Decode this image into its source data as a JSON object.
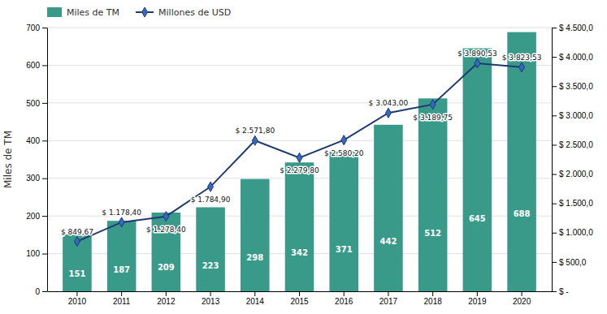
{
  "chart_data": {
    "type": "bar",
    "categories": [
      "2010",
      "2011",
      "2012",
      "2013",
      "2014",
      "2015",
      "2016",
      "2017",
      "2018",
      "2019",
      "2020"
    ],
    "ylabel": "Miles de TM",
    "series": [
      {
        "name": "Miles de TM",
        "type": "bar",
        "color": "#3a9a8a",
        "data_labels": true,
        "values": [
          151,
          187,
          209,
          223,
          298,
          342,
          371,
          442,
          512,
          645,
          688
        ]
      },
      {
        "name": "Millones de USD",
        "type": "line",
        "axis": "y2",
        "color": "#1e3a6e",
        "marker": "diamond",
        "data_labels": true,
        "values": [
          849.67,
          1178.4,
          1278.4,
          1784.9,
          2571.8,
          2279.8,
          2580.2,
          3043.0,
          3189.75,
          3890.53,
          3823.53
        ],
        "value_labels": [
          "$ 849,67",
          "$ 1.178,40",
          "$ 1.278,40",
          "$ 1.784,90",
          "$ 2.571,80",
          "$ 2.279,80",
          "$ 2.580,20",
          "$ 3.043,00",
          "$ 3.189,75",
          "$ 3.890,53",
          "$ 3.823,53"
        ]
      }
    ],
    "ylim": [
      0,
      700
    ],
    "yticks": [
      0,
      100,
      200,
      300,
      400,
      500,
      600,
      700
    ],
    "y2lim": [
      0,
      4500
    ],
    "y2ticks": [
      {
        "value": 0,
        "label": "$ -"
      },
      {
        "value": 500,
        "label": "$ 500,0"
      },
      {
        "value": 1000,
        "label": "$ 1.000,0"
      },
      {
        "value": 1500,
        "label": "$ 1.500,0"
      },
      {
        "value": 2000,
        "label": "$ 2.000,0"
      },
      {
        "value": 2500,
        "label": "$ 2.500,0"
      },
      {
        "value": 3000,
        "label": "$ 3.000,0"
      },
      {
        "value": 3500,
        "label": "$ 3.500,0"
      },
      {
        "value": 4000,
        "label": "$ 4.000,0"
      },
      {
        "value": 4500,
        "label": "$ 4.500,0"
      }
    ],
    "grid": true,
    "legend": "upper left"
  }
}
